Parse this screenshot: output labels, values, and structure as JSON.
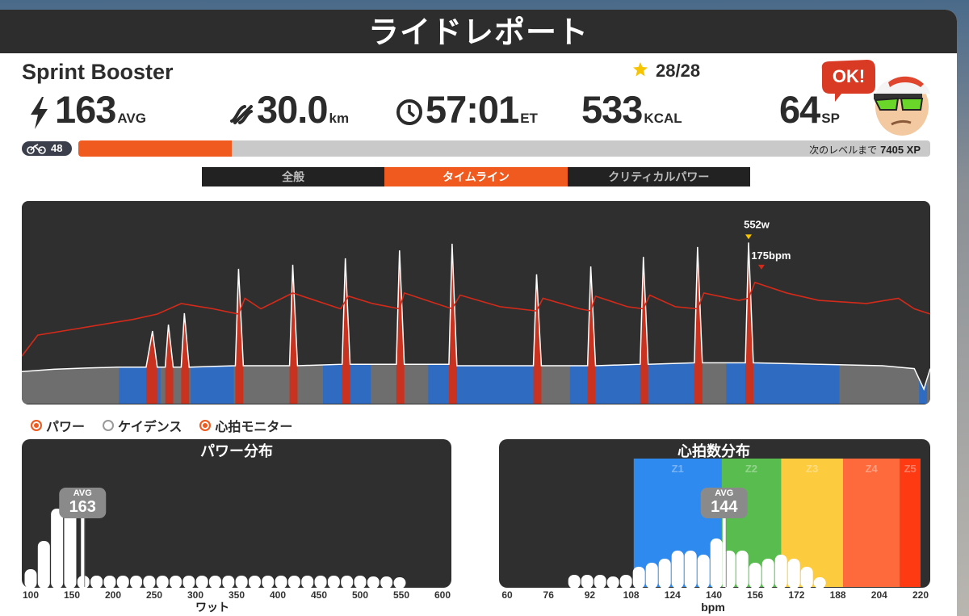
{
  "header": {
    "title": "ライドレポート"
  },
  "ride": {
    "name": "Sprint Booster",
    "stars": "28/28",
    "badge": "OK!"
  },
  "stats": [
    {
      "value": 163,
      "unit": "AVG"
    },
    {
      "value": "30.0",
      "unit": "km"
    },
    {
      "value": "57:01",
      "unit": "ET"
    },
    {
      "value": 533,
      "unit": "KCAL"
    },
    {
      "value": 64,
      "unit": "SP"
    }
  ],
  "level": {
    "value": 48,
    "progress": 0.18,
    "label": "次のレベルまで",
    "xp": "7405 XP"
  },
  "tabs": {
    "items": [
      "全般",
      "タイムライン",
      "クリティカルパワー"
    ],
    "active": 1
  },
  "timeline": {
    "xlim": [
      0,
      57
    ],
    "power_ylim": [
      0,
      650
    ],
    "hr_ylim": [
      60,
      240
    ],
    "power": {
      "color": "#ffffff",
      "fill": "#6e6e6e",
      "spike_color": "#c8321e",
      "x": [
        0,
        2,
        4,
        6,
        7.8,
        8.2,
        8.5,
        9.0,
        9.2,
        9.5,
        10.0,
        10.2,
        10.5,
        13.4,
        13.6,
        13.9,
        16.8,
        17.0,
        17.3,
        20.1,
        20.3,
        20.6,
        23.5,
        23.7,
        24.0,
        26.8,
        27.0,
        27.3,
        32.1,
        32.3,
        32.6,
        35.5,
        35.7,
        36.0,
        38.8,
        39.0,
        39.3,
        42.2,
        42.4,
        42.7,
        45.4,
        45.6,
        45.9,
        50,
        54,
        56,
        56.6,
        57
      ],
      "values": [
        110,
        118,
        122,
        125,
        125,
        249,
        125,
        125,
        271,
        125,
        125,
        310,
        125,
        130,
        462,
        130,
        130,
        476,
        130,
        135,
        498,
        135,
        135,
        525,
        135,
        135,
        548,
        130,
        130,
        443,
        130,
        130,
        470,
        130,
        135,
        503,
        135,
        140,
        537,
        140,
        140,
        552,
        140,
        135,
        130,
        120,
        50,
        120
      ]
    },
    "zone_bands": {
      "color": "#2f6bc0",
      "ranges": [
        [
          6.1,
          8.7
        ],
        [
          10.6,
          13.3
        ],
        [
          18.9,
          21.9
        ],
        [
          25.5,
          32.1
        ],
        [
          34.4,
          42.2
        ],
        [
          44.2,
          51.3
        ],
        [
          56.3,
          56.8
        ]
      ]
    },
    "hr": {
      "color": "#d42a1a",
      "x": [
        0,
        1,
        3,
        5,
        7,
        8.5,
        10,
        12,
        13.6,
        14,
        15,
        17,
        18,
        20,
        20.5,
        22,
        23.7,
        24,
        26,
        27,
        27.5,
        30,
        32.3,
        32.7,
        35,
        35.7,
        36,
        38,
        39,
        39.4,
        41,
        42.4,
        42.8,
        45,
        45.6,
        46,
        48,
        50,
        53,
        55,
        56,
        57
      ],
      "values": [
        105,
        125,
        130,
        135,
        140,
        145,
        155,
        150,
        145,
        160,
        150,
        165,
        160,
        150,
        162,
        155,
        150,
        165,
        155,
        150,
        163,
        152,
        148,
        160,
        150,
        148,
        162,
        152,
        150,
        163,
        152,
        150,
        165,
        158,
        160,
        175,
        165,
        158,
        155,
        160,
        150,
        145
      ]
    },
    "peak_labels": {
      "power": "552w",
      "hr": "175bpm"
    }
  },
  "legend": {
    "items": [
      "パワー",
      "ケイデンス",
      "心拍モニター"
    ],
    "checked": [
      true,
      false,
      true
    ]
  },
  "power_distribution": {
    "title": "パワー分布",
    "x_label": "ワット",
    "avg_label": "AVG",
    "avg": 163,
    "xlim": [
      100,
      600
    ],
    "ylim": [
      0,
      160
    ],
    "xticks": [
      100,
      150,
      200,
      250,
      300,
      350,
      400,
      450,
      500,
      550,
      600
    ],
    "x": [
      100,
      116,
      132,
      148,
      164,
      180,
      196,
      212,
      228,
      244,
      260,
      276,
      292,
      308,
      324,
      340,
      356,
      372,
      388,
      404,
      420,
      436,
      452,
      468,
      484,
      500,
      516,
      532,
      548
    ],
    "values": [
      22,
      57,
      97,
      97,
      14,
      14,
      14,
      14,
      14,
      14,
      14,
      14,
      14,
      14,
      14,
      14,
      14,
      14,
      14,
      14,
      14,
      14,
      14,
      14,
      14,
      14,
      13,
      13,
      12
    ]
  },
  "hr_distribution": {
    "title": "心拍数分布",
    "x_label": "bpm",
    "avg_label": "AVG",
    "avg": 144,
    "xlim": [
      60,
      220
    ],
    "ylim": [
      0,
      160
    ],
    "xticks": [
      60,
      76,
      92,
      108,
      124,
      140,
      156,
      172,
      188,
      204,
      220
    ],
    "zones": [
      {
        "name": "Z1",
        "color": "#2f8af0",
        "range": [
          109,
          143
        ]
      },
      {
        "name": "Z2",
        "color": "#58bd4e",
        "range": [
          143,
          166
        ]
      },
      {
        "name": "Z3",
        "color": "#fdcb3e",
        "range": [
          166,
          190
        ]
      },
      {
        "name": "Z4",
        "color": "#fe6a3b",
        "range": [
          190,
          212
        ]
      },
      {
        "name": "Z5",
        "color": "#fe3a12",
        "range": [
          212,
          220
        ]
      }
    ],
    "x": [
      86,
      91,
      96,
      101,
      106,
      111,
      116,
      121,
      126,
      131,
      136,
      141,
      146,
      151,
      156,
      161,
      166,
      171,
      176,
      181
    ],
    "values": [
      15,
      15,
      15,
      13,
      15,
      25,
      30,
      35,
      45,
      45,
      40,
      60,
      45,
      45,
      30,
      35,
      40,
      35,
      25,
      12
    ]
  }
}
